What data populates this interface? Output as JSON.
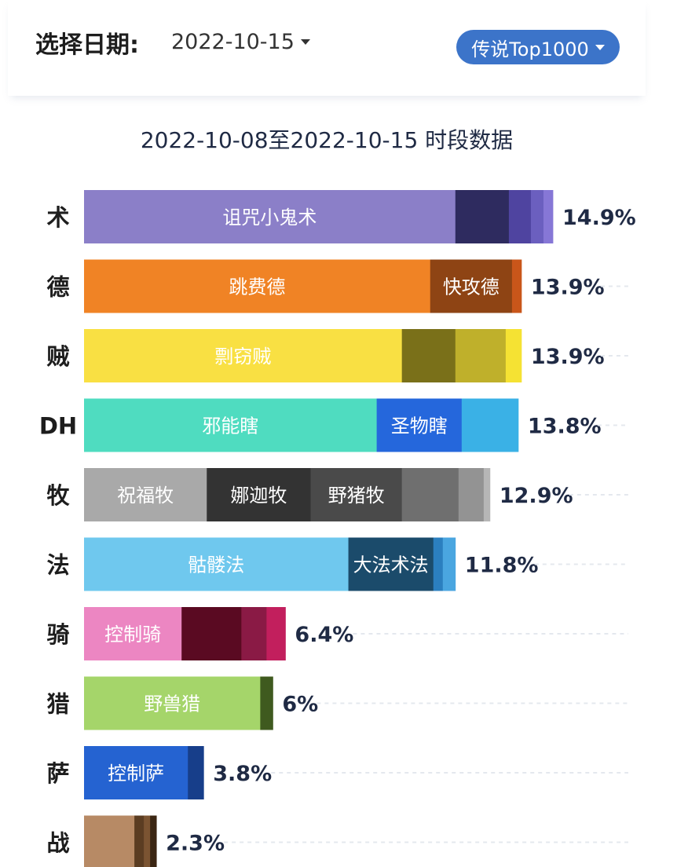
{
  "header": {
    "date_label": "选择日期:",
    "date_value": "2022-10-15",
    "rank_filter": "传说Top1000"
  },
  "colors": {
    "accent": "#3c74c9",
    "title": "#1f2a44"
  },
  "chart_data": {
    "type": "bar",
    "orientation": "horizontal",
    "stacked": true,
    "title": "2022-10-08至2022-10-15 时段数据",
    "xlim": [
      0,
      14.9
    ],
    "categories": [
      {
        "label": "术",
        "total": "14.9%",
        "value": 14.9,
        "segments": [
          {
            "name": "诅咒小鬼术",
            "value": 11.8,
            "color": "#8b7fc8",
            "text": "#ffffff"
          },
          {
            "name": "",
            "value": 1.7,
            "color": "#2e2b5f"
          },
          {
            "name": "",
            "value": 0.7,
            "color": "#4f44a0"
          },
          {
            "name": "",
            "value": 0.4,
            "color": "#6b5fbf"
          },
          {
            "name": "",
            "value": 0.3,
            "color": "#8677d6"
          }
        ]
      },
      {
        "label": "德",
        "total": "13.9%",
        "value": 13.9,
        "segments": [
          {
            "name": "跳费德",
            "value": 11.0,
            "color": "#f08325",
            "text": "#ffffff"
          },
          {
            "name": "快攻德",
            "value": 2.6,
            "color": "#8e4414",
            "text": "#ffffff"
          },
          {
            "name": "",
            "value": 0.3,
            "color": "#c9561a"
          }
        ]
      },
      {
        "label": "贼",
        "total": "13.9%",
        "value": 13.9,
        "segments": [
          {
            "name": "剽窃贼",
            "value": 10.1,
            "color": "#f9e043",
            "text": "#ffffff"
          },
          {
            "name": "",
            "value": 1.7,
            "color": "#7a7019"
          },
          {
            "name": "",
            "value": 1.6,
            "color": "#bfb02b"
          },
          {
            "name": "",
            "value": 0.5,
            "color": "#f5e233"
          }
        ]
      },
      {
        "label": "DH",
        "total": "13.8%",
        "value": 13.8,
        "segments": [
          {
            "name": "邪能瞎",
            "value": 9.3,
            "color": "#4fdcc0",
            "text": "#ffffff"
          },
          {
            "name": "圣物瞎",
            "value": 2.7,
            "color": "#2567dc",
            "text": "#ffffff"
          },
          {
            "name": "",
            "value": 1.8,
            "color": "#3ab1e6"
          }
        ]
      },
      {
        "label": "牧",
        "total": "12.9%",
        "value": 12.9,
        "segments": [
          {
            "name": "祝福牧",
            "value": 3.9,
            "color": "#a9a9a9",
            "text": "#ffffff"
          },
          {
            "name": "娜迦牧",
            "value": 3.3,
            "color": "#333333",
            "text": "#ffffff"
          },
          {
            "name": "野猪牧",
            "value": 2.9,
            "color": "#4a4a4a",
            "text": "#ffffff"
          },
          {
            "name": "",
            "value": 1.8,
            "color": "#6f6f6f"
          },
          {
            "name": "",
            "value": 0.8,
            "color": "#939393"
          },
          {
            "name": "",
            "value": 0.2,
            "color": "#b6b6b6"
          }
        ]
      },
      {
        "label": "法",
        "total": "11.8%",
        "value": 11.8,
        "segments": [
          {
            "name": "骷髅法",
            "value": 8.4,
            "color": "#6fc8ee",
            "text": "#ffffff"
          },
          {
            "name": "大法术法",
            "value": 2.7,
            "color": "#1b4b6b",
            "text": "#ffffff"
          },
          {
            "name": "",
            "value": 0.3,
            "color": "#2b7fbf"
          },
          {
            "name": "",
            "value": 0.4,
            "color": "#4aa6e0"
          }
        ]
      },
      {
        "label": "骑",
        "total": "6.4%",
        "value": 6.4,
        "segments": [
          {
            "name": "控制骑",
            "value": 3.1,
            "color": "#ec86c2",
            "text": "#ffffff"
          },
          {
            "name": "",
            "value": 1.9,
            "color": "#5a0a22"
          },
          {
            "name": "",
            "value": 0.8,
            "color": "#8a1a45"
          },
          {
            "name": "",
            "value": 0.6,
            "color": "#c21f5d"
          }
        ]
      },
      {
        "label": "猎",
        "total": "6%",
        "value": 6.0,
        "segments": [
          {
            "name": "野兽猎",
            "value": 5.6,
            "color": "#a5d56a",
            "text": "#ffffff"
          },
          {
            "name": "",
            "value": 0.4,
            "color": "#3f5a1f"
          }
        ]
      },
      {
        "label": "萨",
        "total": "3.8%",
        "value": 3.8,
        "segments": [
          {
            "name": "控制萨",
            "value": 3.3,
            "color": "#2563d1",
            "text": "#ffffff"
          },
          {
            "name": "",
            "value": 0.5,
            "color": "#173e8a"
          }
        ]
      },
      {
        "label": "战",
        "total": "2.3%",
        "value": 2.3,
        "segments": [
          {
            "name": "",
            "value": 1.6,
            "color": "#b78a65"
          },
          {
            "name": "",
            "value": 0.3,
            "color": "#5b3d22"
          },
          {
            "name": "",
            "value": 0.2,
            "color": "#7b5432"
          },
          {
            "name": "",
            "value": 0.2,
            "color": "#3b2613"
          }
        ]
      }
    ]
  }
}
